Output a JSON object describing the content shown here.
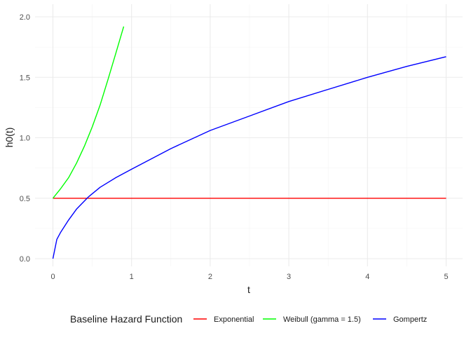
{
  "chart_data": {
    "type": "line",
    "title": "",
    "xlabel": "t",
    "ylabel": "h0(t)",
    "xlim": [
      -0.25,
      5.0
    ],
    "ylim": [
      -0.05,
      2.05
    ],
    "x_ticks": [
      0,
      1,
      2,
      3,
      4,
      5
    ],
    "x_tick_labels": [
      "0",
      "1",
      "2",
      "3",
      "4",
      "5"
    ],
    "y_ticks": [
      0.0,
      0.5,
      1.0,
      1.5,
      2.0
    ],
    "y_tick_labels": [
      "0.0",
      "0.5",
      "1.0",
      "1.5",
      "2.0"
    ],
    "grid": true,
    "legend": {
      "position": "bottom",
      "title": "Baseline Hazard Function"
    },
    "series": [
      {
        "name": "Exponential",
        "color": "#ff0000",
        "x": [
          0,
          5
        ],
        "y": [
          0.5,
          0.5
        ]
      },
      {
        "name": "Weibull (gamma = 1.5)",
        "color": "#00ff00",
        "x": [
          0,
          0.1,
          0.2,
          0.3,
          0.4,
          0.5,
          0.6,
          0.7,
          0.8,
          0.9
        ],
        "y": [
          0.5,
          0.58,
          0.67,
          0.79,
          0.93,
          1.09,
          1.27,
          1.48,
          1.7,
          1.92
        ]
      },
      {
        "name": "Gompertz",
        "color": "#0000ff",
        "x": [
          0,
          0.05,
          0.1,
          0.2,
          0.3,
          0.45,
          0.6,
          0.8,
          1.0,
          1.5,
          2.0,
          2.5,
          3.0,
          3.5,
          4.0,
          4.5,
          5.0
        ],
        "y": [
          0.0,
          0.16,
          0.22,
          0.32,
          0.41,
          0.51,
          0.59,
          0.67,
          0.74,
          0.91,
          1.06,
          1.18,
          1.3,
          1.4,
          1.5,
          1.59,
          1.67
        ]
      }
    ]
  }
}
